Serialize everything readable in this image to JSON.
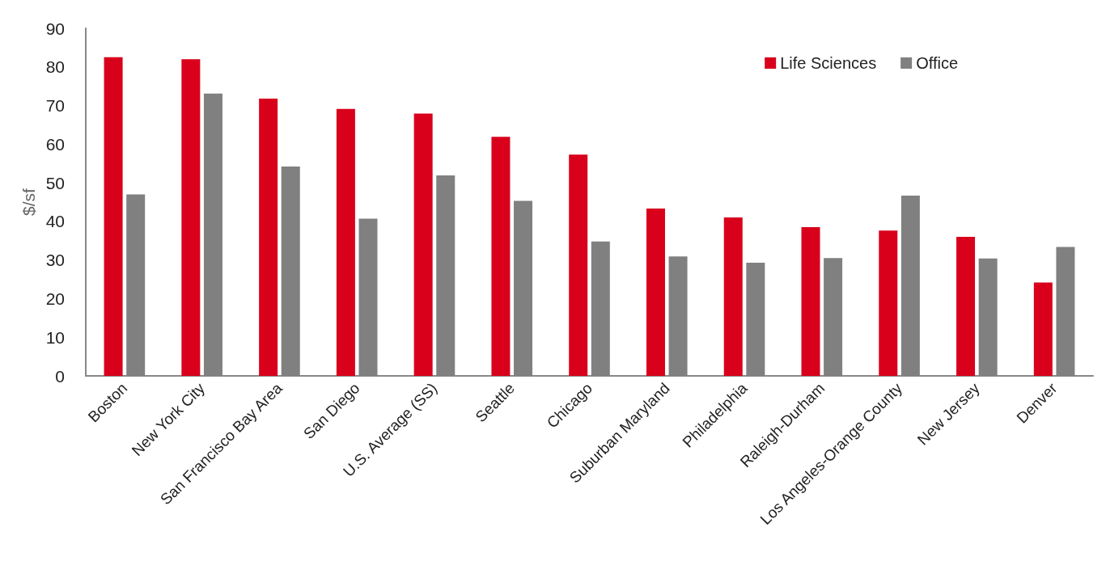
{
  "chart_data": {
    "type": "bar",
    "ylabel": "$/sf",
    "categories": [
      "Boston",
      "New York City",
      "San Francisco Bay Area",
      "San Diego",
      "U.S. Average (SS)",
      "Seattle",
      "Chicago",
      "Suburban Maryland",
      "Philadelphia",
      "Raleigh-Durham",
      "Los Angeles-Orange County",
      "New Jersey",
      "Denver"
    ],
    "series": [
      {
        "name": "Life Sciences",
        "color": "#d9001b",
        "values": [
          82.5,
          82.0,
          71.8,
          69.1,
          67.9,
          61.9,
          57.3,
          43.3,
          41.0,
          38.5,
          37.6,
          36.0,
          24.2
        ]
      },
      {
        "name": "Office",
        "color": "#808080",
        "values": [
          47.0,
          73.1,
          54.2,
          40.7,
          51.9,
          45.3,
          34.8,
          30.9,
          29.3,
          30.5,
          46.7,
          30.4,
          33.4
        ]
      }
    ],
    "ylim": [
      0,
      90
    ],
    "yticks": [
      0,
      10,
      20,
      30,
      40,
      50,
      60,
      70,
      80,
      90
    ],
    "grid": false,
    "legend": "top right"
  }
}
